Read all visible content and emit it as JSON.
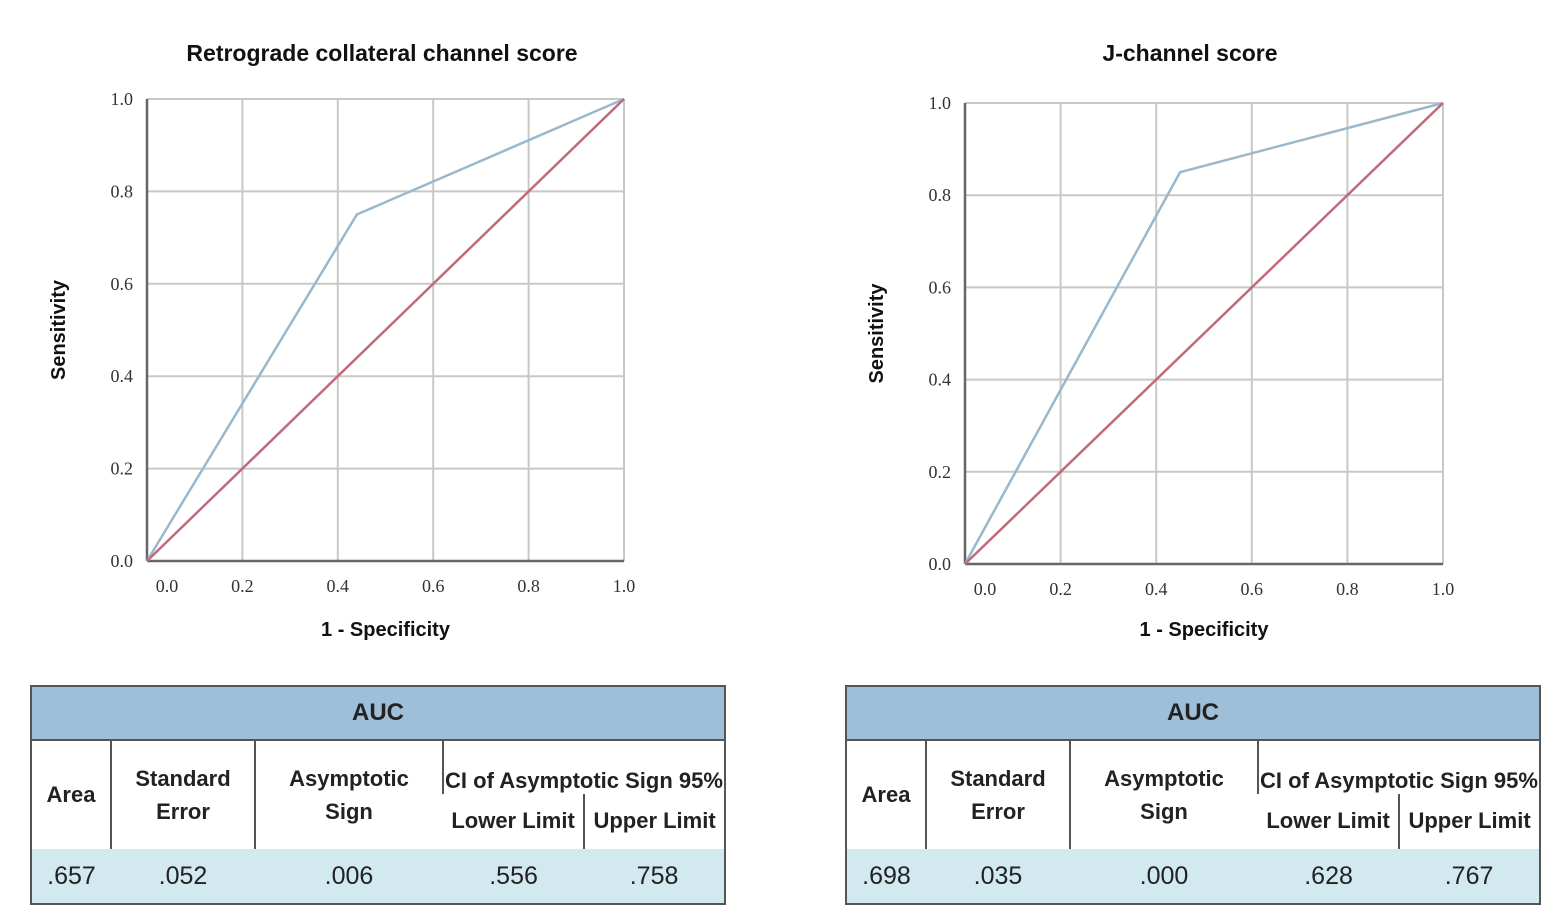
{
  "chart_data": [
    {
      "type": "line",
      "title": "Retrograde collateral channel score",
      "xlabel": "1 - Specificity",
      "ylabel": "Sensitivity",
      "xlim": [
        0,
        1
      ],
      "ylim": [
        0,
        1
      ],
      "grid": true,
      "xticks": [
        "0.0",
        "0.2",
        "0.4",
        "0.6",
        "0.8",
        "1.0"
      ],
      "yticks": [
        "0.0",
        "0.2",
        "0.4",
        "0.6",
        "0.8",
        "1.0"
      ],
      "series": [
        {
          "color": "#9ab8cc",
          "x": [
            0,
            0.44,
            1
          ],
          "y": [
            0,
            0.75,
            1
          ]
        },
        {
          "color": "#c06a7a",
          "x": [
            0,
            1
          ],
          "y": [
            0,
            1
          ]
        }
      ]
    },
    {
      "type": "line",
      "title": "J-channel score",
      "xlabel": "1 - Specificity",
      "ylabel": "Sensitivity",
      "xlim": [
        0,
        1
      ],
      "ylim": [
        0,
        1
      ],
      "grid": true,
      "xticks": [
        "0.0",
        "0.2",
        "0.4",
        "0.6",
        "0.8",
        "1.0"
      ],
      "yticks": [
        "0.0",
        "0.2",
        "0.4",
        "0.6",
        "0.8",
        "1.0"
      ],
      "series": [
        {
          "color": "#9ab8cc",
          "x": [
            0,
            0.45,
            1
          ],
          "y": [
            0,
            0.85,
            1
          ]
        },
        {
          "color": "#c06a7a",
          "x": [
            0,
            1
          ],
          "y": [
            0,
            1
          ]
        }
      ]
    }
  ],
  "tables": [
    {
      "title": "AUC",
      "headers": {
        "area": "Area",
        "se": "Standard Error",
        "sig": "Asymptotic Sign",
        "ci": "CI of Asymptotic Sign 95%",
        "lower": "Lower Limit",
        "upper": "Upper Limit"
      },
      "values": {
        "area": ".657",
        "se": ".052",
        "sig": ".006",
        "lower": ".556",
        "upper": ".758"
      }
    },
    {
      "title": "AUC",
      "headers": {
        "area": "Area",
        "se": "Standard Error",
        "sig": "Asymptotic Sign",
        "ci": "CI of Asymptotic Sign 95%",
        "lower": "Lower Limit",
        "upper": "Upper Limit"
      },
      "values": {
        "area": ".698",
        "se": ".035",
        "sig": ".000",
        "lower": ".628",
        "upper": ".767"
      }
    }
  ]
}
